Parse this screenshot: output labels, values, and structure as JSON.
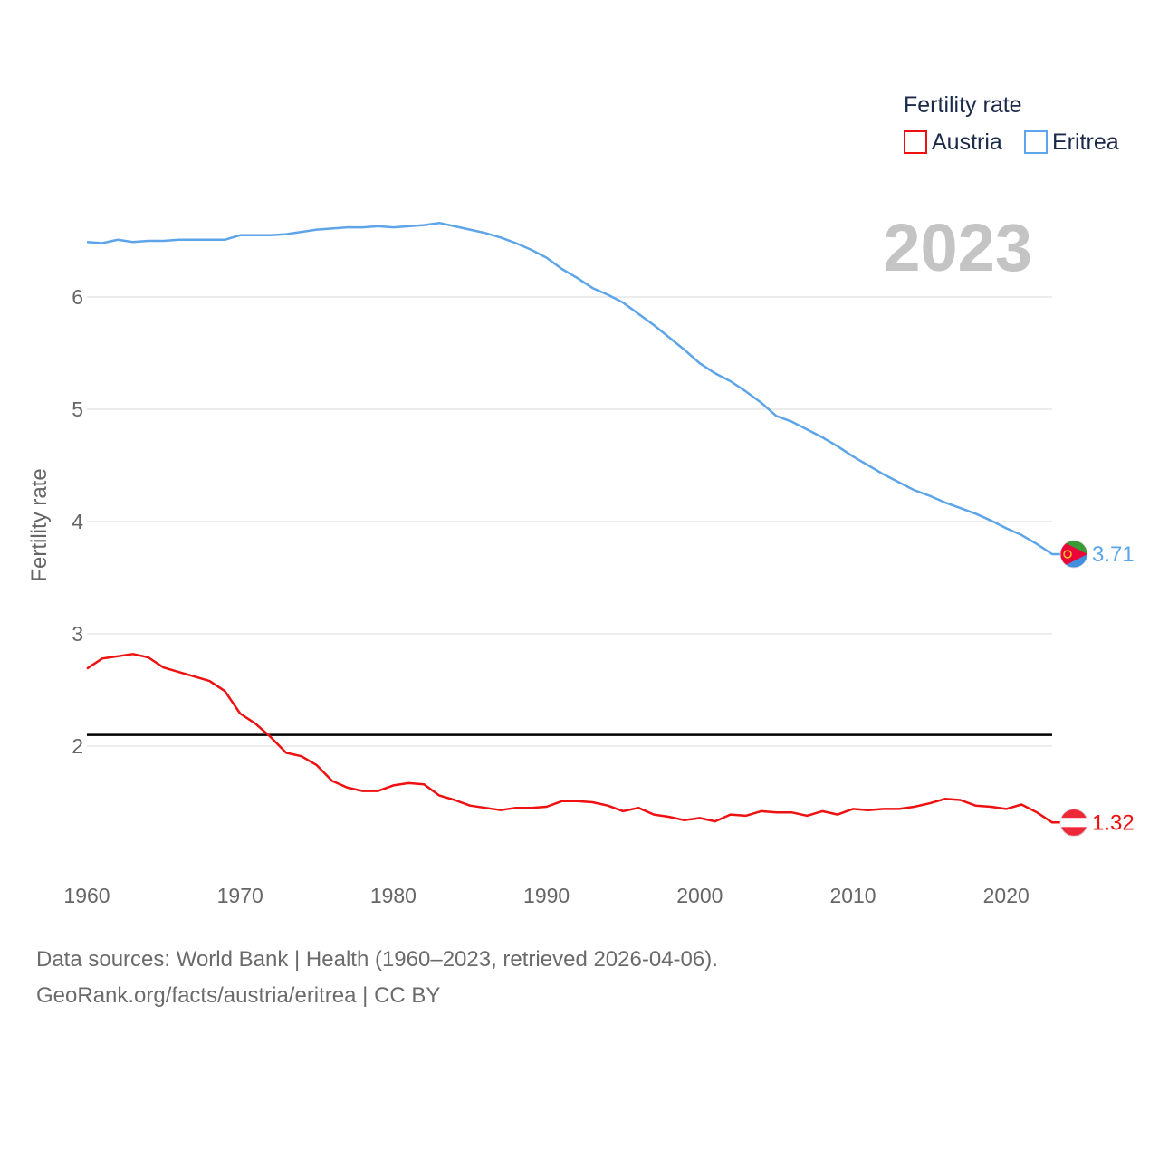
{
  "chart_data": {
    "type": "line",
    "title": "",
    "ylabel": "Fertility rate",
    "xlabel": "",
    "legend_title": "Fertility rate",
    "legend_position": "top-right",
    "year_label": "2023",
    "xlim": [
      1960,
      2023
    ],
    "ylim": [
      0.9,
      7.0
    ],
    "x_ticks": [
      1960,
      1970,
      1980,
      1990,
      2000,
      2010,
      2020
    ],
    "y_ticks": [
      2,
      3,
      4,
      5,
      6
    ],
    "grid": true,
    "reference_line": {
      "value": 2.1,
      "color": "#000000"
    },
    "x": [
      1960,
      1961,
      1962,
      1963,
      1964,
      1965,
      1966,
      1967,
      1968,
      1969,
      1970,
      1971,
      1972,
      1973,
      1974,
      1975,
      1976,
      1977,
      1978,
      1979,
      1980,
      1981,
      1982,
      1983,
      1984,
      1985,
      1986,
      1987,
      1988,
      1989,
      1990,
      1991,
      1992,
      1993,
      1994,
      1995,
      1996,
      1997,
      1998,
      1999,
      2000,
      2001,
      2002,
      2003,
      2004,
      2005,
      2006,
      2007,
      2008,
      2009,
      2010,
      2011,
      2012,
      2013,
      2014,
      2015,
      2016,
      2017,
      2018,
      2019,
      2020,
      2021,
      2022,
      2023
    ],
    "series": [
      {
        "name": "Austria",
        "color": "#ee1111",
        "end_label": "1.32",
        "flag": "austria-flag-icon",
        "values": [
          2.69,
          2.78,
          2.8,
          2.82,
          2.79,
          2.7,
          2.66,
          2.62,
          2.58,
          2.49,
          2.29,
          2.2,
          2.08,
          1.94,
          1.91,
          1.83,
          1.69,
          1.63,
          1.6,
          1.6,
          1.65,
          1.67,
          1.66,
          1.56,
          1.52,
          1.47,
          1.45,
          1.43,
          1.45,
          1.45,
          1.46,
          1.51,
          1.51,
          1.5,
          1.47,
          1.42,
          1.45,
          1.39,
          1.37,
          1.34,
          1.36,
          1.33,
          1.39,
          1.38,
          1.42,
          1.41,
          1.41,
          1.38,
          1.42,
          1.39,
          1.44,
          1.43,
          1.44,
          1.44,
          1.46,
          1.49,
          1.53,
          1.52,
          1.47,
          1.46,
          1.44,
          1.48,
          1.41,
          1.32
        ]
      },
      {
        "name": "Eritrea",
        "color": "#5da5e8",
        "end_label": "3.71",
        "flag": "eritrea-flag-icon",
        "values": [
          6.49,
          6.48,
          6.51,
          6.49,
          6.5,
          6.5,
          6.51,
          6.51,
          6.51,
          6.51,
          6.55,
          6.55,
          6.55,
          6.56,
          6.58,
          6.6,
          6.61,
          6.62,
          6.62,
          6.63,
          6.62,
          6.63,
          6.64,
          6.66,
          6.63,
          6.6,
          6.57,
          6.53,
          6.48,
          6.42,
          6.35,
          6.25,
          6.17,
          6.08,
          6.02,
          5.95,
          5.85,
          5.75,
          5.64,
          5.53,
          5.41,
          5.32,
          5.25,
          5.16,
          5.06,
          4.94,
          4.89,
          4.82,
          4.75,
          4.67,
          4.58,
          4.5,
          4.42,
          4.35,
          4.28,
          4.23,
          4.17,
          4.12,
          4.07,
          4.01,
          3.94,
          3.88,
          3.8,
          3.71
        ]
      }
    ]
  },
  "footer": {
    "line1": "Data sources: World Bank | Health (1960–2023, retrieved 2026-04-06).",
    "line2": "GeoRank.org/facts/austria/eritrea | CC BY"
  }
}
